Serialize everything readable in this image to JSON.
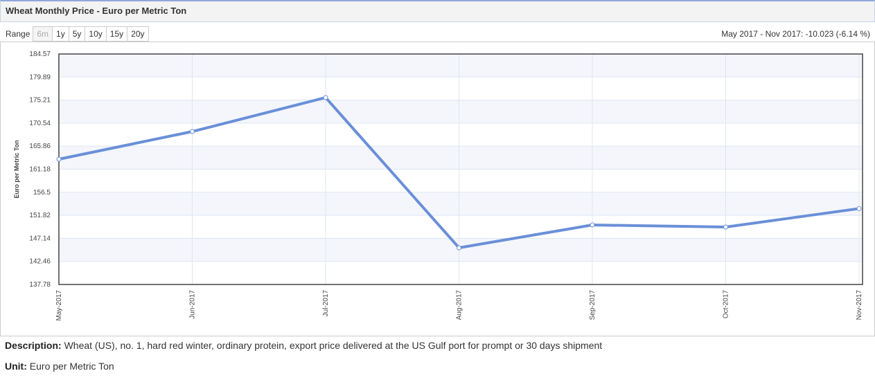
{
  "header": {
    "title": "Wheat Monthly Price - Euro per Metric Ton"
  },
  "range": {
    "label": "Range",
    "buttons": [
      "6m",
      "1y",
      "5y",
      "10y",
      "15y",
      "20y"
    ]
  },
  "summary": "May 2017 - Nov 2017: -10.023 (-6.14 %)",
  "chart_data": {
    "type": "line",
    "y_label": "Euro per Metric Ton",
    "categories": [
      "May-2017",
      "Jun-2017",
      "Jul-2017",
      "Aug-2017",
      "Sep-2017",
      "Oct-2017",
      "Nov-2017"
    ],
    "series": [
      {
        "name": "Wheat",
        "color": "#6a8fd8",
        "values": [
          163.21,
          168.83,
          175.72,
          145.23,
          149.86,
          149.44,
          153.19
        ]
      }
    ],
    "ylim": [
      137.78,
      184.57
    ],
    "yticks": [
      137.78,
      142.46,
      147.14,
      151.82,
      156.5,
      161.18,
      165.86,
      170.54,
      175.21,
      179.89,
      184.57
    ],
    "grid": true
  },
  "description": {
    "label": "Description:",
    "text": "Wheat (US), no. 1, hard red winter, ordinary protein, export price delivered at the US Gulf port for prompt or 30 days shipment"
  },
  "unit": {
    "label": "Unit:",
    "text": "Euro per Metric Ton"
  }
}
